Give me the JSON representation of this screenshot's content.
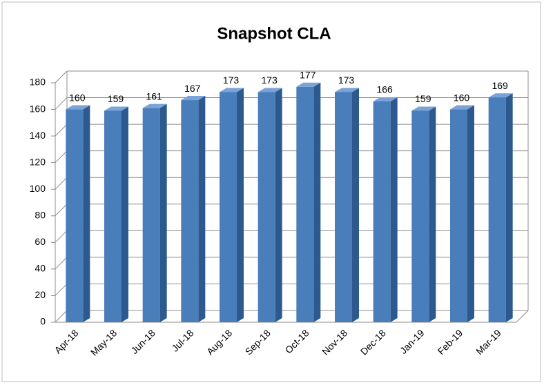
{
  "chart_data": {
    "type": "bar",
    "title": "Snapshot CLA",
    "categories": [
      "Apr-18",
      "May-18",
      "Jun-18",
      "Jul-18",
      "Aug-18",
      "Sep-18",
      "Oct-18",
      "Nov-18",
      "Dec-18",
      "Jan-19",
      "Feb-19",
      "Mar-19"
    ],
    "values": [
      160,
      159,
      161,
      167,
      173,
      173,
      177,
      173,
      166,
      159,
      160,
      169
    ],
    "color": "#4a7ebb",
    "ylim": [
      0,
      180
    ],
    "yticks": [
      0,
      20,
      40,
      60,
      80,
      100,
      120,
      140,
      160,
      180
    ],
    "grid": true
  }
}
